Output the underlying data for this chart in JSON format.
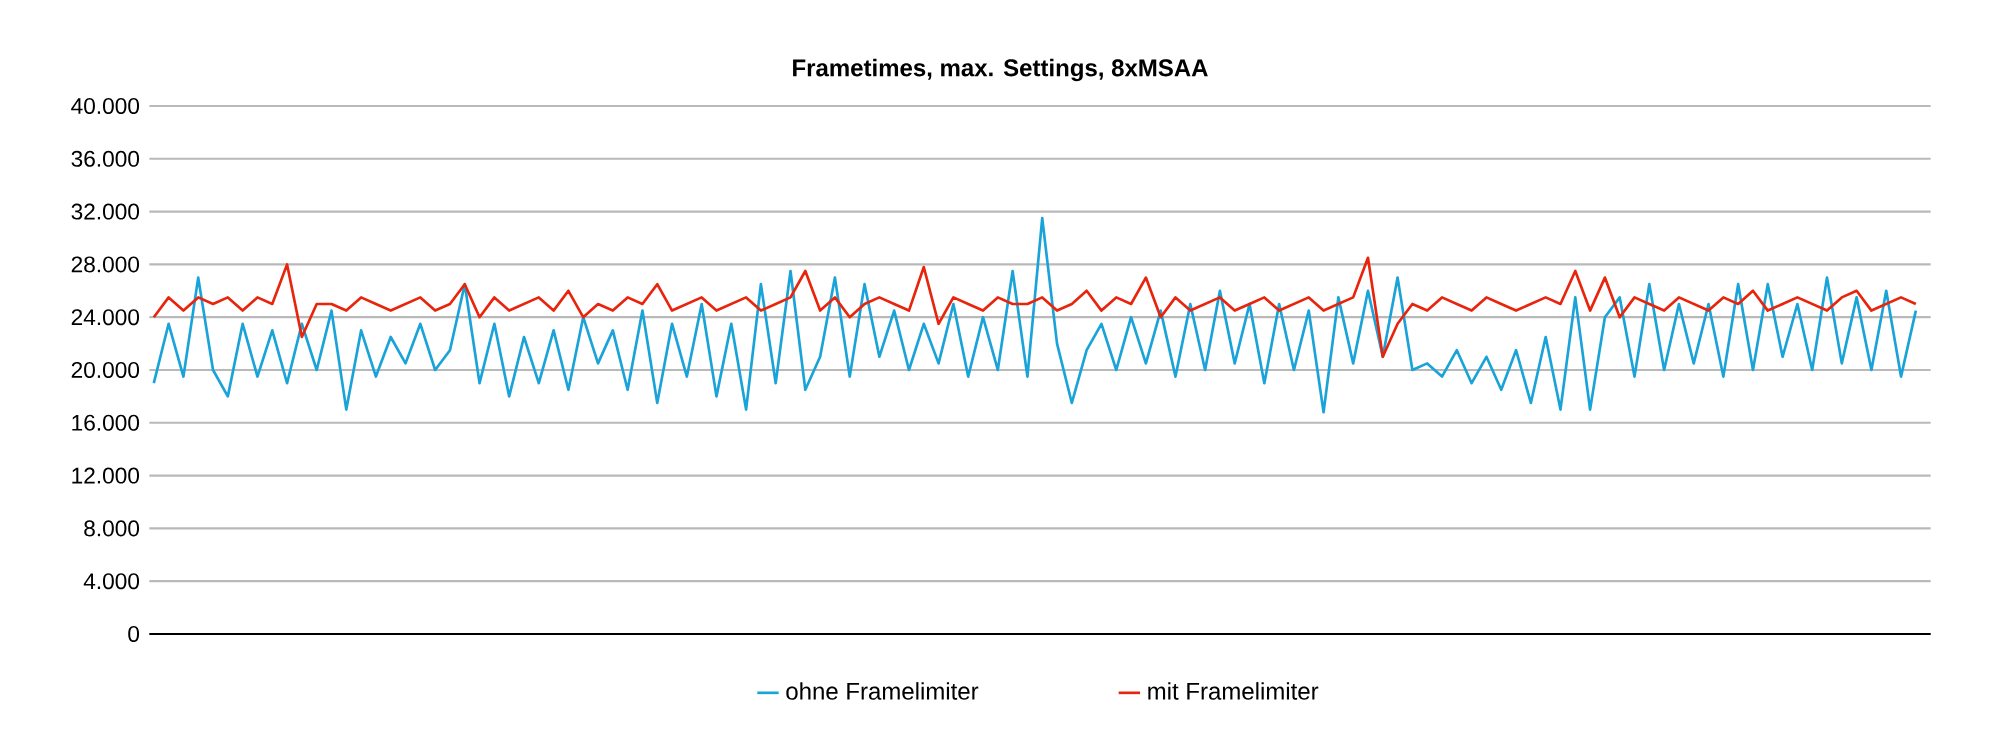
{
  "chart_data": {
    "type": "line",
    "title": "Frametimes, max. Settings, 8xMSAA",
    "categories": [
      null,
      null,
      null,
      null,
      null,
      null,
      null,
      null,
      null,
      null,
      null,
      null,
      null,
      null,
      null,
      null,
      null,
      null,
      null,
      null,
      null,
      null,
      null,
      null,
      null,
      null,
      null,
      null,
      null,
      null,
      null,
      null,
      null,
      null,
      null,
      null,
      null,
      null,
      null,
      null,
      null,
      null,
      null,
      null,
      null,
      null,
      null,
      null,
      null,
      null,
      null,
      null,
      null,
      null,
      null,
      null,
      null,
      null,
      null,
      null,
      null,
      null,
      null,
      null,
      null,
      null,
      null,
      null,
      null,
      null,
      null,
      null,
      null,
      null,
      null,
      null,
      null,
      null,
      null,
      null,
      null,
      null,
      null,
      null,
      null,
      null,
      null,
      null,
      null,
      null,
      null,
      null,
      null,
      null,
      null,
      null,
      null,
      null,
      null,
      null,
      null,
      null,
      null,
      null,
      null,
      null,
      null,
      null,
      null,
      null,
      null,
      null,
      null,
      null,
      null,
      null,
      null,
      null,
      null,
      null
    ],
    "series": [
      {
        "name": "ohne Framelimiter",
        "color": "#1aa3d9",
        "values": [
          19000,
          23500,
          19500,
          27000,
          20000,
          18000,
          23500,
          19500,
          23000,
          19000,
          23500,
          20000,
          24500,
          17000,
          23000,
          19500,
          22500,
          20500,
          23500,
          20000,
          21500,
          26500,
          19000,
          23500,
          18000,
          22500,
          19000,
          23000,
          18500,
          24000,
          20500,
          23000,
          18500,
          24500,
          17500,
          23500,
          19500,
          25000,
          18000,
          23500,
          17000,
          26500,
          19000,
          27500,
          18500,
          21000,
          27000,
          19500,
          26500,
          21000,
          24500,
          20000,
          23500,
          20500,
          25000,
          19500,
          24000,
          20000,
          27500,
          19500,
          31500,
          22000,
          17500,
          21500,
          23500,
          20000,
          24000,
          20500,
          24500,
          19500,
          25000,
          20000,
          26000,
          20500,
          25000,
          19000,
          25000,
          20000,
          24500,
          16800,
          25500,
          20500,
          26000,
          21000,
          27000,
          20000,
          20500,
          19500,
          21500,
          19000,
          21000,
          18500,
          21500,
          17500,
          22500,
          17000,
          25500,
          17000,
          24000,
          25500,
          19500,
          26500,
          20000,
          25000,
          20500,
          25000,
          19500,
          26500,
          20000,
          26500,
          21000,
          25000,
          20000,
          27000,
          20500,
          25500,
          20000,
          26000,
          19500,
          24500
        ]
      },
      {
        "name": "mit Framelimiter",
        "color": "#e8250c",
        "values": [
          24000,
          25500,
          24500,
          25500,
          25000,
          25500,
          24500,
          25500,
          25000,
          28000,
          22500,
          25000,
          25000,
          24500,
          25500,
          25000,
          24500,
          25000,
          25500,
          24500,
          25000,
          26500,
          24000,
          25500,
          24500,
          25000,
          25500,
          24500,
          26000,
          24000,
          25000,
          24500,
          25500,
          25000,
          26500,
          24500,
          25000,
          25500,
          24500,
          25000,
          25500,
          24500,
          25000,
          25500,
          27500,
          24500,
          25500,
          24000,
          25000,
          25500,
          25000,
          24500,
          27800,
          23500,
          25500,
          25000,
          24500,
          25500,
          25000,
          25000,
          25500,
          24500,
          25000,
          26000,
          24500,
          25500,
          25000,
          27000,
          24000,
          25500,
          24500,
          25000,
          25500,
          24500,
          25000,
          25500,
          24500,
          25000,
          25500,
          24500,
          25000,
          25500,
          28500,
          21000,
          23500,
          25000,
          24500,
          25500,
          25000,
          24500,
          25500,
          25000,
          24500,
          25000,
          25500,
          25000,
          27500,
          24500,
          27000,
          24000,
          25500,
          25000,
          24500,
          25500,
          25000,
          24500,
          25500,
          25000,
          26000,
          24500,
          25000,
          25500,
          25000,
          24500,
          25500,
          26000,
          24500,
          25000,
          25500,
          25000
        ]
      }
    ],
    "ylim": [
      0,
      40000
    ],
    "yticks": [
      0,
      {
        "value": 4000,
        "label": "4.000"
      },
      {
        "value": 8000,
        "label": "8.000"
      },
      {
        "value": 12000,
        "label": "12.000"
      },
      {
        "value": 16000,
        "label": "16.000"
      },
      {
        "value": 20000,
        "label": "20.000"
      },
      {
        "value": 24000,
        "label": "24.000"
      },
      {
        "value": 28000,
        "label": "28.000"
      },
      {
        "value": 32000,
        "label": "32.000"
      },
      {
        "value": 36000,
        "label": "36.000"
      },
      {
        "value": 40000,
        "label": "40.000"
      }
    ],
    "grid": "y",
    "legend": "bottom",
    "tick_labels": "y"
  }
}
